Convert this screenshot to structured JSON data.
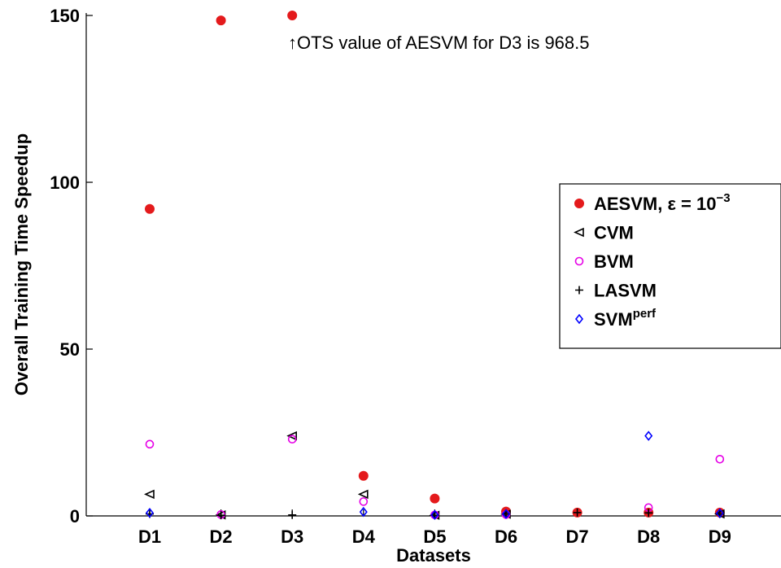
{
  "chart_data": {
    "type": "scatter",
    "categories": [
      "D1",
      "D2",
      "D3",
      "D4",
      "D5",
      "D6",
      "D7",
      "D8",
      "D9"
    ],
    "xlabel": "Datasets",
    "ylabel": "Overall Training Time Speedup",
    "ylim": [
      0,
      150
    ],
    "yticks": [
      0,
      50,
      100,
      150
    ],
    "legend_position": "right",
    "annotation": "↑OTS value of AESVM for D3 is 968.5",
    "series": [
      {
        "name": "AESVM, ε = 10",
        "name_sup": "−3",
        "marker": "filled-circle",
        "color": "#e41a1c",
        "values": [
          92,
          148.5,
          150,
          12,
          5.2,
          1.3,
          1.0,
          1.0,
          1.0
        ]
      },
      {
        "name": "CVM",
        "marker": "triangle-left",
        "color": "#000000",
        "values": [
          6.5,
          0.3,
          24,
          6.5,
          0.2,
          0.5,
          null,
          null,
          0.6
        ]
      },
      {
        "name": "BVM",
        "marker": "open-circle",
        "color": "#e600e6",
        "values": [
          21.5,
          0.4,
          23,
          4.3,
          0.3,
          0.4,
          null,
          2.5,
          17
        ]
      },
      {
        "name": "LASVM",
        "marker": "plus",
        "color": "#000000",
        "values": [
          0.6,
          0.2,
          0.3,
          null,
          0.2,
          0.6,
          1.0,
          0.9,
          0.6
        ]
      },
      {
        "name": "SVM",
        "name_sup": "perf",
        "marker": "diamond",
        "color": "#0000ff",
        "values": [
          0.9,
          null,
          null,
          1.2,
          0.3,
          0.6,
          null,
          24,
          0.8
        ]
      }
    ]
  }
}
